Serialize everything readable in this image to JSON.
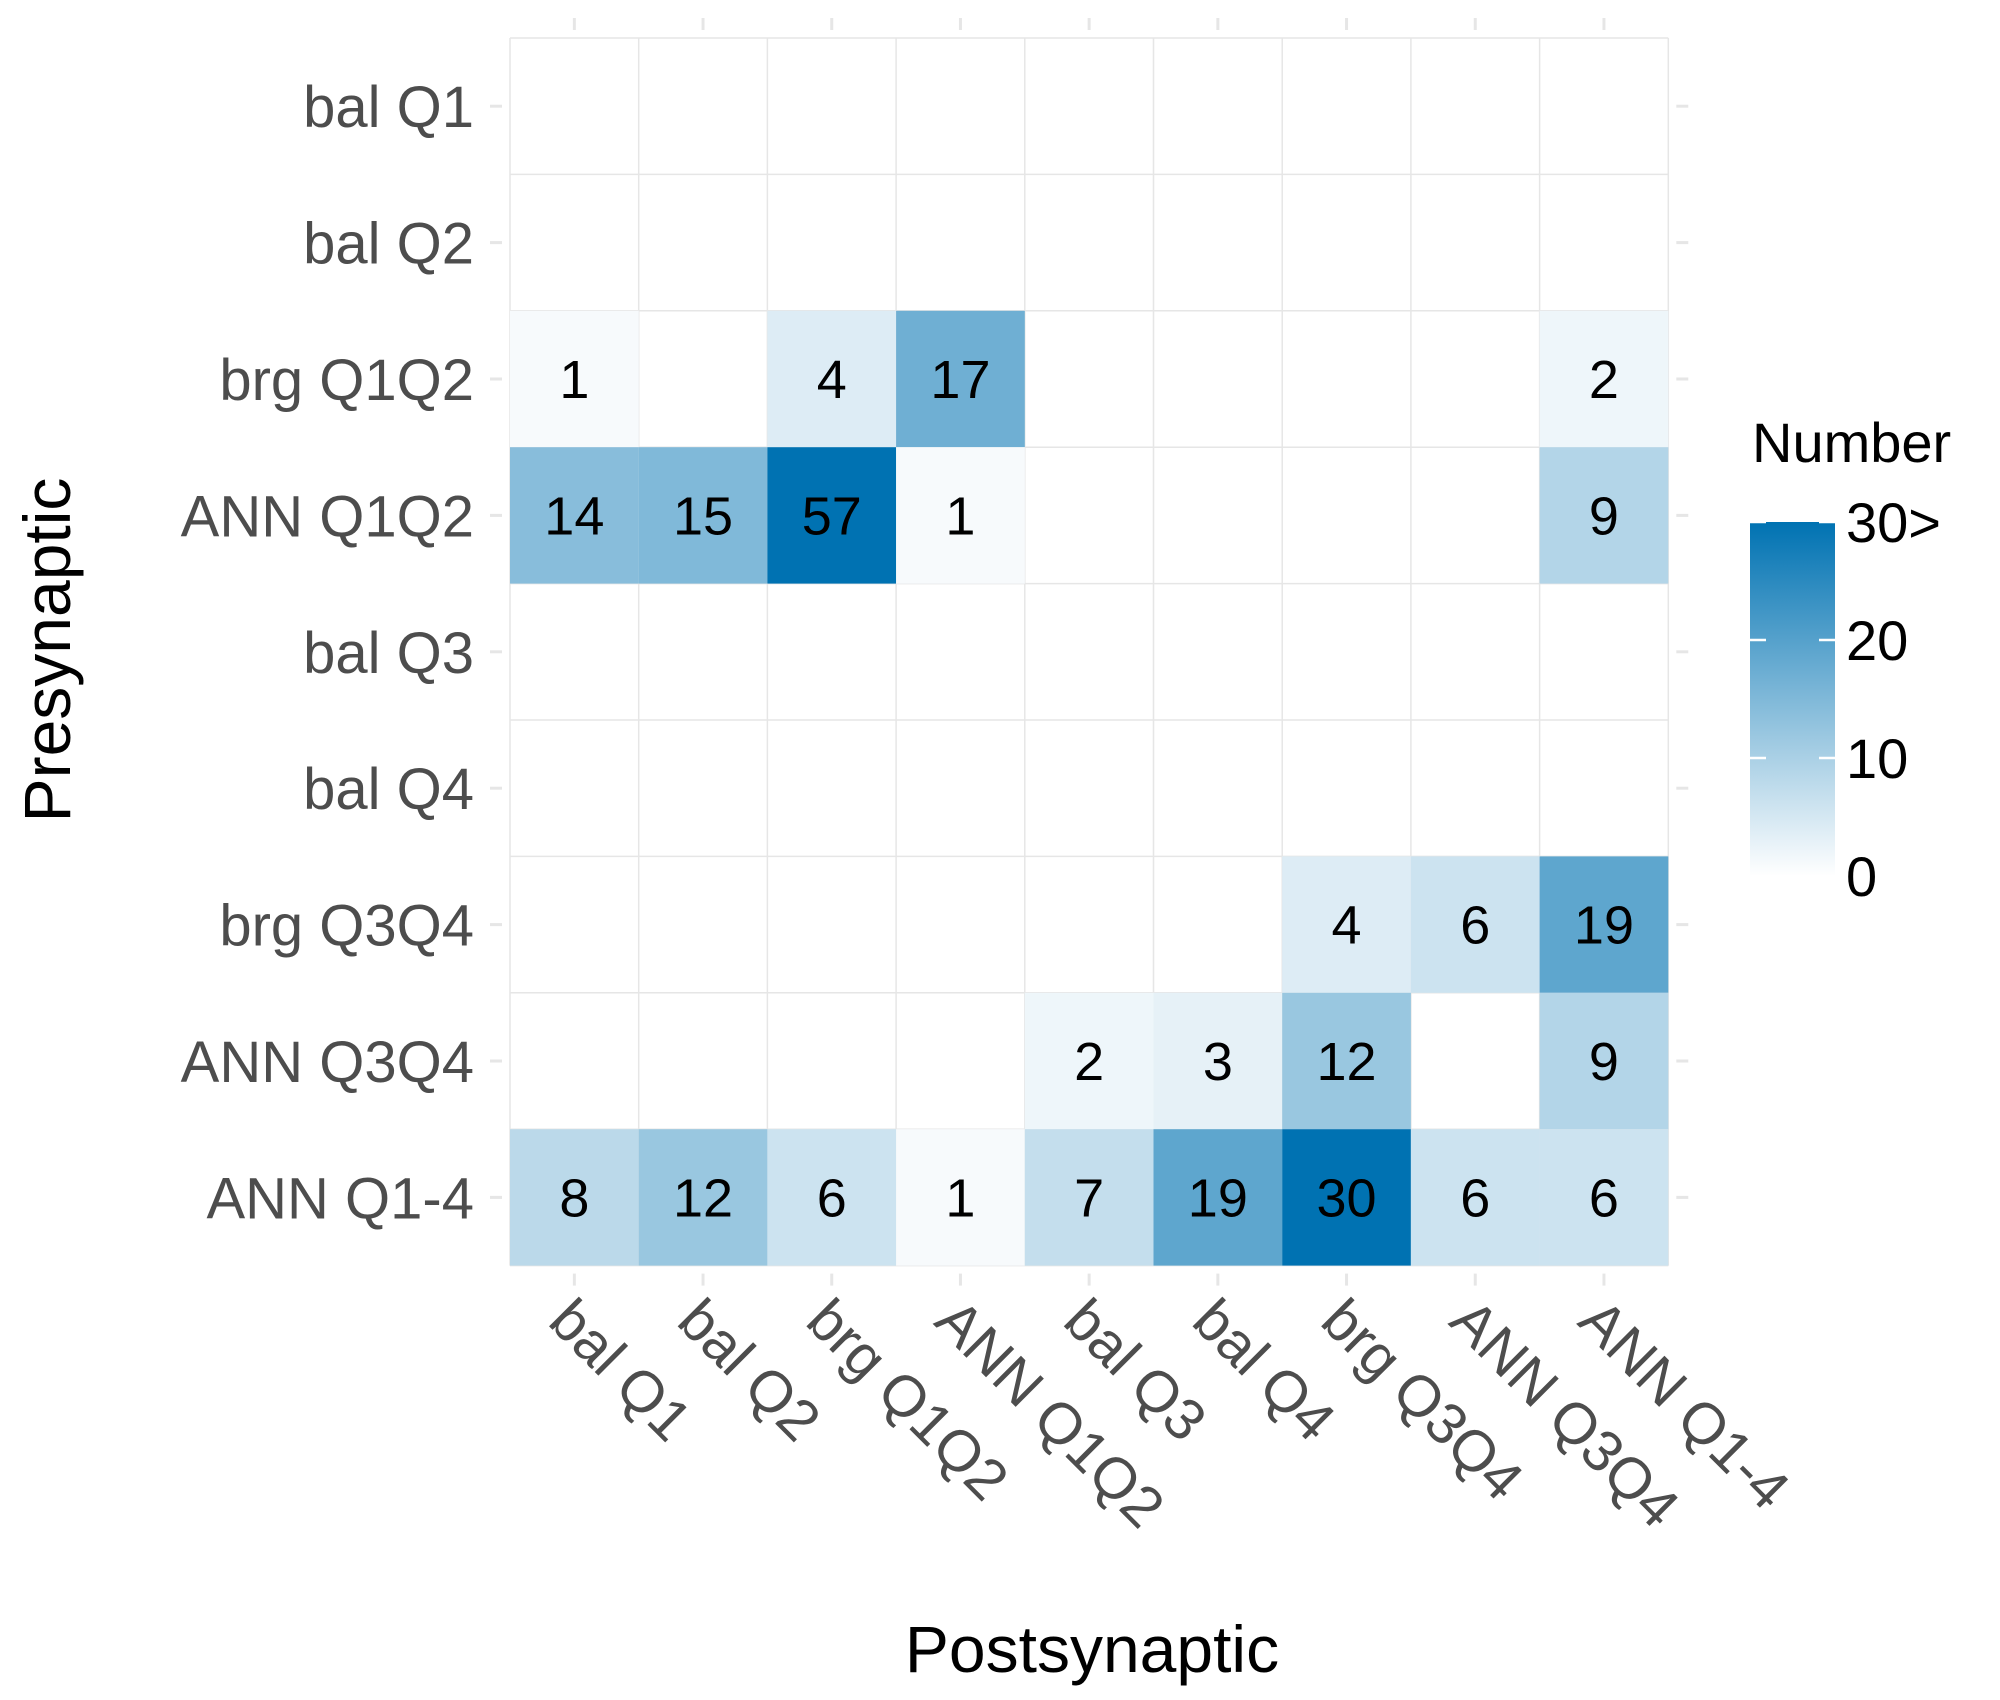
{
  "chart_data": {
    "type": "heatmap",
    "xlabel": "Postsynaptic",
    "ylabel": "Presynaptic",
    "x_categories": [
      "bal Q1",
      "bal Q2",
      "brg Q1Q2",
      "ANN Q1Q2",
      "bal Q3",
      "bal Q4",
      "brg Q3Q4",
      "ANN Q3Q4",
      "ANN Q1-4"
    ],
    "y_categories": [
      "bal Q1",
      "bal Q2",
      "brg Q1Q2",
      "ANN Q1Q2",
      "bal Q3",
      "bal Q4",
      "brg Q3Q4",
      "ANN Q3Q4",
      "ANN Q1-4"
    ],
    "values": [
      [
        null,
        null,
        null,
        null,
        null,
        null,
        null,
        null,
        null
      ],
      [
        null,
        null,
        null,
        null,
        null,
        null,
        null,
        null,
        null
      ],
      [
        1,
        null,
        4,
        17,
        null,
        null,
        null,
        null,
        2
      ],
      [
        14,
        15,
        57,
        1,
        null,
        null,
        null,
        null,
        9
      ],
      [
        null,
        null,
        null,
        null,
        null,
        null,
        null,
        null,
        null
      ],
      [
        null,
        null,
        null,
        null,
        null,
        null,
        null,
        null,
        null
      ],
      [
        null,
        null,
        null,
        null,
        null,
        null,
        4,
        6,
        19
      ],
      [
        null,
        null,
        null,
        null,
        2,
        3,
        12,
        null,
        9
      ],
      [
        8,
        12,
        6,
        1,
        7,
        19,
        30,
        6,
        6
      ]
    ],
    "color_scale": {
      "low": "#ffffff",
      "high": "#0072b2",
      "min": 0,
      "max": 30,
      "clip_above": true
    },
    "legend": {
      "title": "Number",
      "position": "right",
      "breaks": [
        0,
        10,
        20,
        30
      ],
      "labels": [
        "0",
        "10",
        "20",
        "30>"
      ]
    },
    "grid": true
  }
}
